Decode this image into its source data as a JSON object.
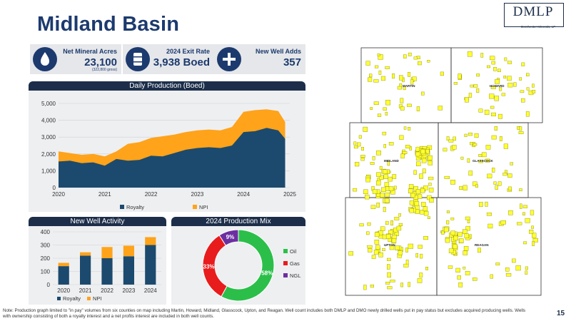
{
  "page": {
    "title": "Midland Basin",
    "page_number": "15"
  },
  "logo": {
    "name": "DMLP",
    "subtitle": "Dorchester Minerals, LP"
  },
  "stats": [
    {
      "icon": "water-drop-icon",
      "label": "Net Mineral Acres",
      "value": "23,100",
      "sub": "(322,800 gross)"
    },
    {
      "icon": "oil-barrel-icon",
      "label": "2024 Exit Rate",
      "value": "3,938 Boed",
      "sub": ""
    },
    {
      "icon": "plus-icon",
      "label": "New Well Adds",
      "value": "357",
      "sub": ""
    }
  ],
  "colors": {
    "navy": "#1c4a6e",
    "orange": "#ffa31a",
    "oil": "#2bbf4a",
    "gas": "#e81c1c",
    "ngl": "#6b2fa0",
    "map_fill": "#ffff33"
  },
  "chart_data": [
    {
      "type": "area",
      "title": "Daily Production (Boed)",
      "x": [
        2020.0,
        2020.25,
        2020.5,
        2020.75,
        2021.0,
        2021.25,
        2021.5,
        2021.75,
        2022.0,
        2022.25,
        2022.5,
        2022.75,
        2023.0,
        2023.25,
        2023.5,
        2023.75,
        2024.0,
        2024.25,
        2024.5,
        2024.75,
        2024.9
      ],
      "series": [
        {
          "name": "Royalty",
          "values": [
            1550,
            1600,
            1450,
            1500,
            1300,
            1700,
            1600,
            1650,
            1900,
            1850,
            2050,
            2250,
            2350,
            2400,
            2350,
            2500,
            3300,
            3350,
            3550,
            3400,
            2900
          ]
        },
        {
          "name": "NPI",
          "values": [
            2150,
            2050,
            1950,
            2000,
            1850,
            2150,
            2600,
            2700,
            2950,
            3050,
            3150,
            3300,
            3400,
            3450,
            3400,
            3600,
            4500,
            4600,
            4650,
            4550,
            3900
          ]
        }
      ],
      "xticks": [
        "2020",
        "2021",
        "2022",
        "2023",
        "2024",
        "2025"
      ],
      "yticks": [
        "0",
        "1,000",
        "2,000",
        "3,000",
        "4,000",
        "5,000"
      ],
      "ylim": [
        0,
        5000
      ],
      "legend": [
        "Royalty",
        "NPI"
      ],
      "legend_position": "bottom"
    },
    {
      "type": "bar",
      "title": "New Well Activity",
      "categories": [
        "2020",
        "2021",
        "2022",
        "2023",
        "2024"
      ],
      "series": [
        {
          "name": "Royalty",
          "values": [
            140,
            220,
            200,
            215,
            300
          ]
        },
        {
          "name": "NPI",
          "values": [
            25,
            25,
            85,
            80,
            60
          ]
        }
      ],
      "yticks": [
        "0",
        "100",
        "200",
        "300",
        "400"
      ],
      "ylim": [
        0,
        400
      ],
      "legend": [
        "Royalty",
        "NPI"
      ],
      "legend_position": "bottom"
    },
    {
      "type": "pie",
      "title": "2024 Production Mix",
      "labels": [
        "Oil",
        "Gas",
        "NGL"
      ],
      "values": [
        58,
        33,
        9
      ],
      "data_labels": [
        "58%",
        "33%",
        "9%"
      ],
      "legend_position": "right"
    }
  ],
  "map": {
    "counties": [
      "MARTIN",
      "HOWARD",
      "MIDLAND",
      "GLASSCOCK",
      "UPTON",
      "REAGAN"
    ]
  },
  "note": "Note: Production graph limited to \"in pay\" volumes from six counties on map including Martin, Howard, Midland, Glasscock, Upton, and Reagan. Well count includes both DMLP and DMO newly drilled wells put in pay status but excludes acquired producing wells. Wells with ownership consisting of both a royalty interest and a net profits interest are included in both well counts."
}
